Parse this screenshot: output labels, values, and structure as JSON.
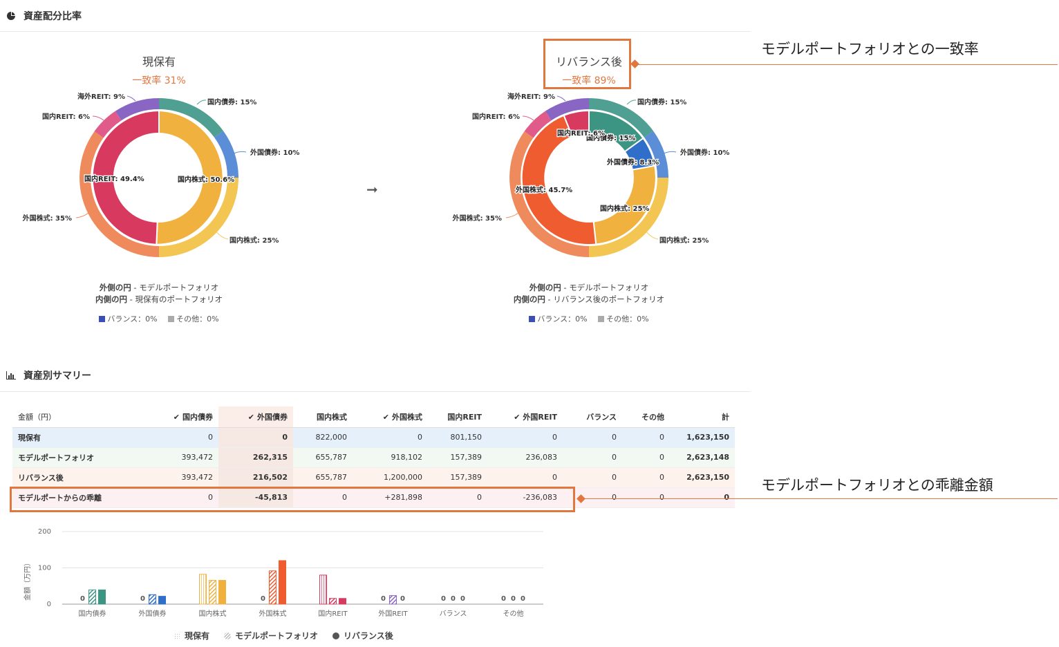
{
  "allocation": {
    "title": "資産配分比率",
    "arrow": "➞",
    "current": {
      "title": "現保有",
      "match_rate": "一致率 31%",
      "outer_labels": [
        {
          "text": "国内債券: 15%",
          "color": "#4f9f92"
        },
        {
          "text": "外国債券: 10%",
          "color": "#5b8ed6"
        },
        {
          "text": "国内株式: 25%",
          "color": "#f3c654"
        },
        {
          "text": "外国株式: 35%",
          "color": "#ef8a5d"
        },
        {
          "text": "国内REIT: 6%",
          "color": "#e05a8a"
        },
        {
          "text": "海外REIT: 9%",
          "color": "#8a66c4"
        }
      ],
      "inner_labels": [
        {
          "text": "国内株式: 50.6%",
          "color": "#f0b13f"
        },
        {
          "text": "国内REIT: 49.4%",
          "color": "#d8395f"
        }
      ],
      "note_outer_bold": "外側の円",
      "note_outer_text": " - モデルポートフォリオ",
      "note_inner_bold": "内側の円",
      "note_inner_text": " - 現保有のポートフォリオ",
      "legend_balance": "バランス：0%",
      "legend_other": "その他：0%"
    },
    "rebalanced": {
      "title": "リバランス後",
      "match_rate": "一致率 89%",
      "outer_labels": [
        {
          "text": "国内債券: 15%",
          "color": "#4f9f92"
        },
        {
          "text": "外国債券: 10%",
          "color": "#5b8ed6"
        },
        {
          "text": "国内株式: 25%",
          "color": "#f3c654"
        },
        {
          "text": "外国株式: 35%",
          "color": "#ef8a5d"
        },
        {
          "text": "国内REIT: 6%",
          "color": "#e05a8a"
        },
        {
          "text": "海外REIT: 9%",
          "color": "#8a66c4"
        }
      ],
      "inner_labels": [
        {
          "text": "国内債券: 15%",
          "color": "#3c9583"
        },
        {
          "text": "外国債券: 8.3%",
          "color": "#2f6fc9"
        },
        {
          "text": "国内株式: 25%",
          "color": "#f0b13f"
        },
        {
          "text": "外国株式: 45.7%",
          "color": "#ee5c30"
        },
        {
          "text": "国内REIT: 6%",
          "color": "#d8395f"
        }
      ],
      "note_outer_bold": "外側の円",
      "note_outer_text": " - モデルポートフォリオ",
      "note_inner_bold": "内側の円",
      "note_inner_text": " - リバランス後のポートフォリオ",
      "legend_balance": "バランス：0%",
      "legend_other": "その他：0%"
    },
    "legend_colors": {
      "balance": "#3a4fb5",
      "other": "#aaaaaa"
    }
  },
  "callouts": {
    "match_rate": "モデルポートフォリオとの一致率",
    "deviation": "モデルポートフォリオとの乖離金額",
    "color": "#e2763f"
  },
  "summary": {
    "title": "資産別サマリー",
    "header_first": "金額（円）",
    "columns": [
      {
        "label": "国内債券",
        "checked": true
      },
      {
        "label": "外国債券",
        "checked": true
      },
      {
        "label": "国内株式",
        "checked": false
      },
      {
        "label": "外国株式",
        "checked": true
      },
      {
        "label": "国内REIT",
        "checked": false
      },
      {
        "label": "外国REIT",
        "checked": true
      },
      {
        "label": "バランス",
        "checked": false
      },
      {
        "label": "その他",
        "checked": false
      },
      {
        "label": "計",
        "checked": false
      }
    ],
    "check_mark": "✔",
    "rows": [
      {
        "label": "現保有",
        "values": [
          "0",
          "0",
          "822,000",
          "0",
          "801,150",
          "0",
          "0",
          "0",
          "1,623,150"
        ]
      },
      {
        "label": "モデルポートフォリオ",
        "values": [
          "393,472",
          "262,315",
          "655,787",
          "918,102",
          "157,389",
          "236,083",
          "0",
          "0",
          "2,623,148"
        ]
      },
      {
        "label": "リバランス後",
        "values": [
          "393,472",
          "216,502",
          "655,787",
          "1,200,000",
          "157,389",
          "0",
          "0",
          "0",
          "2,623,150"
        ]
      },
      {
        "label": "モデルポートからの乖離",
        "values": [
          "0",
          "-45,813",
          "0",
          "+281,898",
          "0",
          "-236,083",
          "0",
          "0",
          "0"
        ]
      }
    ]
  },
  "chart_data": {
    "type": "bar",
    "ylabel": "金額（万円）",
    "yticks": [
      "200",
      "100",
      "0"
    ],
    "ylim": [
      0,
      200
    ],
    "categories": [
      "国内債券",
      "外国債券",
      "国内株式",
      "外国株式",
      "国内REIT",
      "外国REIT",
      "バランス",
      "その他"
    ],
    "colors": [
      "#3c9583",
      "#2f6fc9",
      "#f0b13f",
      "#ee5c30",
      "#d8395f",
      "#8a66c4",
      "#888888",
      "#888888"
    ],
    "series": [
      {
        "name": "現保有",
        "values": [
          0,
          0,
          82.2,
          0,
          80.1,
          0,
          0,
          0
        ]
      },
      {
        "name": "モデルポートフォリオ",
        "values": [
          39.3,
          26.2,
          65.6,
          91.8,
          15.7,
          23.6,
          0,
          0
        ]
      },
      {
        "name": "リバランス後",
        "values": [
          39.3,
          21.7,
          65.6,
          120,
          15.7,
          0,
          0,
          0
        ]
      }
    ],
    "zero_label": "0"
  }
}
